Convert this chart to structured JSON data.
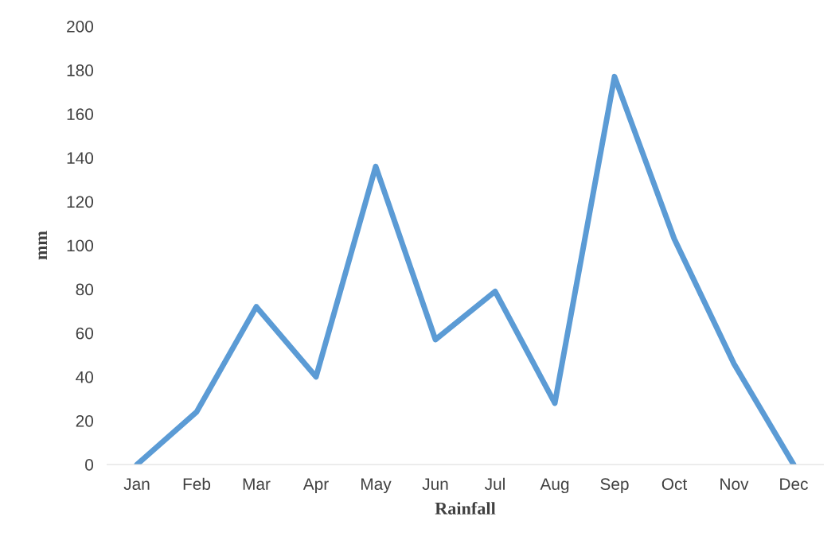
{
  "chart_data": {
    "type": "line",
    "xlabel": "Rainfall",
    "ylabel": "mm",
    "categories": [
      "Jan",
      "Feb",
      "Mar",
      "Apr",
      "May",
      "Jun",
      "Jul",
      "Aug",
      "Sep",
      "Oct",
      "Nov",
      "Dec"
    ],
    "series": [
      {
        "color": "#5b9bd5",
        "values": [
          0,
          24,
          72,
          40,
          136,
          57,
          79,
          28,
          177,
          103,
          46,
          0
        ]
      }
    ],
    "ylim": [
      0,
      200
    ],
    "yticks": [
      0,
      20,
      40,
      60,
      80,
      100,
      120,
      140,
      160,
      180,
      200
    ],
    "grid": false,
    "marker": "none",
    "line_style": "solid"
  }
}
